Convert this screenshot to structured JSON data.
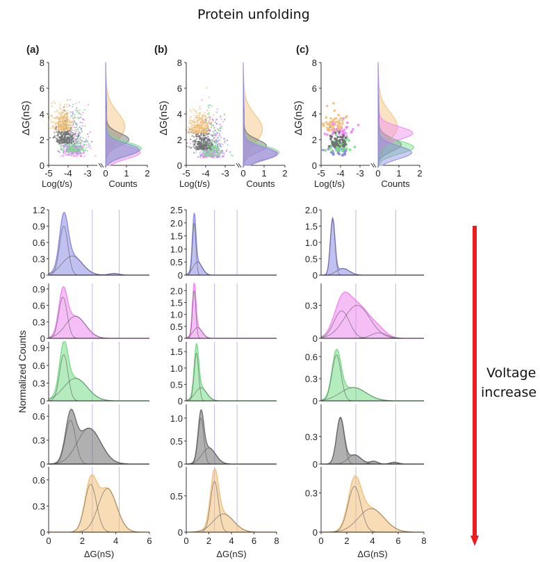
{
  "title": "Protein unfolding",
  "voltage_label": [
    "Voltage",
    "increase"
  ],
  "colors": {
    "blue": "#8c8ce6",
    "magenta": "#ee88ee",
    "green": "#77dd88",
    "black": "#707070",
    "orange": "#f2c07a",
    "grid": "#b8b8f0",
    "arrow": "#ee1c1c"
  },
  "chart_data": [
    {
      "type": "scatter",
      "panel": "(a)",
      "xlabel": "Log(t/s)",
      "ylabel": "ΔG(nS)",
      "xlim": [
        -5,
        -2.5
      ],
      "ylim": [
        0,
        8
      ],
      "xticks": [
        "-5",
        "-4",
        "-3"
      ],
      "yticks": [
        "0",
        "2",
        "4",
        "6",
        "8"
      ],
      "series": [
        {
          "color": "blue",
          "center_x": -4.0,
          "center_y": 1.2,
          "spread": "wide"
        },
        {
          "color": "magenta",
          "center_x": -4.0,
          "center_y": 1.0,
          "spread": "wide"
        },
        {
          "color": "green",
          "center_x": -4.0,
          "center_y": 1.3,
          "spread": "wide"
        },
        {
          "color": "black",
          "center_x": -4.2,
          "center_y": 2.0,
          "spread": "dense"
        },
        {
          "color": "orange",
          "center_x": -4.3,
          "center_y": 3.0,
          "spread": "dense"
        }
      ],
      "side_histogram": {
        "xlabel": "Counts",
        "xticks": [
          "0",
          "1",
          "2"
        ],
        "xlim": [
          0,
          2
        ]
      }
    },
    {
      "type": "scatter",
      "panel": "(b)",
      "xlabel": "Log(t/s)",
      "ylabel": "ΔG(nS)",
      "xlim": [
        -5,
        -2.5
      ],
      "ylim": [
        0,
        8
      ],
      "xticks": [
        "-5",
        "-4",
        "-3"
      ],
      "yticks": [
        "0",
        "2",
        "4",
        "6",
        "8"
      ],
      "series": [
        {
          "color": "blue",
          "center_x": -4.0,
          "center_y": 0.9,
          "spread": "wide"
        },
        {
          "color": "magenta",
          "center_x": -4.0,
          "center_y": 0.9,
          "spread": "wide"
        },
        {
          "color": "green",
          "center_x": -4.0,
          "center_y": 1.0,
          "spread": "wide"
        },
        {
          "color": "black",
          "center_x": -4.2,
          "center_y": 1.5,
          "spread": "dense"
        },
        {
          "color": "orange",
          "center_x": -4.3,
          "center_y": 2.8,
          "spread": "dense"
        }
      ],
      "side_histogram": {
        "xlabel": "Counts",
        "xticks": [
          "0",
          "1",
          "2"
        ],
        "xlim": [
          0,
          2
        ]
      }
    },
    {
      "type": "scatter",
      "panel": "(c)",
      "xlabel": "Log(t/s)",
      "ylabel": "ΔG(nS)",
      "xlim": [
        -5,
        -2.5
      ],
      "ylim": [
        0,
        8
      ],
      "xticks": [
        "-5",
        "-4",
        "-3"
      ],
      "yticks": [
        "0",
        "2",
        "4",
        "6",
        "8"
      ],
      "series": [
        {
          "color": "blue",
          "center_x": -4.1,
          "center_y": 1.0,
          "spread": "sparse"
        },
        {
          "color": "magenta",
          "center_x": -4.1,
          "center_y": 2.5,
          "spread": "sparse"
        },
        {
          "color": "green",
          "center_x": -4.1,
          "center_y": 1.4,
          "spread": "sparse"
        },
        {
          "color": "black",
          "center_x": -4.2,
          "center_y": 1.6,
          "spread": "sparse"
        },
        {
          "color": "orange",
          "center_x": -4.3,
          "center_y": 3.0,
          "spread": "sparse"
        }
      ],
      "side_histogram": {
        "xlabel": "Counts",
        "xticks": [
          "0",
          "1",
          "2"
        ],
        "xlim": [
          0,
          2
        ]
      }
    },
    {
      "type": "area",
      "panel": "(a) histograms",
      "ylabel": "Normalized Counts",
      "xlabel": "ΔG(nS)",
      "xlim": [
        0,
        6
      ],
      "xticks": [
        "0",
        "2",
        "4",
        "6"
      ],
      "vlines": [
        2.6,
        4.2
      ],
      "rows": [
        {
          "color": "blue",
          "ylim": [
            0,
            1.2
          ],
          "yticks": [
            "0",
            "0.3",
            "0.6",
            "0.9",
            "1.2"
          ],
          "peaks": [
            {
              "mu": 0.9,
              "sigma": 0.25,
              "amp": 0.9
            },
            {
              "mu": 1.4,
              "sigma": 0.6,
              "amp": 0.35
            },
            {
              "mu": 3.9,
              "sigma": 0.3,
              "amp": 0.03
            }
          ]
        },
        {
          "color": "magenta",
          "ylim": [
            0,
            1.0
          ],
          "yticks": [
            "0",
            "0.3",
            "0.6",
            "0.9"
          ],
          "peaks": [
            {
              "mu": 0.85,
              "sigma": 0.25,
              "amp": 0.75
            },
            {
              "mu": 1.6,
              "sigma": 0.6,
              "amp": 0.4
            }
          ]
        },
        {
          "color": "green",
          "ylim": [
            0,
            1.0
          ],
          "yticks": [
            "0",
            "0.3",
            "0.6",
            "0.9"
          ],
          "peaks": [
            {
              "mu": 0.9,
              "sigma": 0.25,
              "amp": 0.78
            },
            {
              "mu": 1.6,
              "sigma": 0.7,
              "amp": 0.38
            }
          ]
        },
        {
          "color": "black",
          "ylim": [
            0,
            0.75
          ],
          "yticks": [
            "0",
            "0.3",
            "0.6"
          ],
          "peaks": [
            {
              "mu": 1.3,
              "sigma": 0.3,
              "amp": 0.55
            },
            {
              "mu": 2.4,
              "sigma": 0.7,
              "amp": 0.45
            }
          ]
        },
        {
          "color": "orange",
          "ylim": [
            0,
            0.75
          ],
          "yticks": [
            "0",
            "0.3",
            "0.6"
          ],
          "peaks": [
            {
              "mu": 2.5,
              "sigma": 0.35,
              "amp": 0.55
            },
            {
              "mu": 3.5,
              "sigma": 0.55,
              "amp": 0.5
            }
          ]
        }
      ]
    },
    {
      "type": "area",
      "panel": "(b) histograms",
      "xlabel": "ΔG(nS)",
      "xlim": [
        0,
        8
      ],
      "xticks": [
        "0",
        "2",
        "4",
        "6",
        "8"
      ],
      "vlines": [
        2.5,
        4.5
      ],
      "rows": [
        {
          "color": "blue",
          "ylim": [
            0,
            2.5
          ],
          "yticks": [
            "0",
            "0.5",
            "1.0",
            "1.5",
            "2.0",
            "2.5"
          ],
          "peaks": [
            {
              "mu": 0.7,
              "sigma": 0.15,
              "amp": 2.0
            },
            {
              "mu": 1.0,
              "sigma": 0.4,
              "amp": 0.5
            }
          ]
        },
        {
          "color": "magenta",
          "ylim": [
            0,
            2.3
          ],
          "yticks": [
            "0",
            "0.5",
            "1.0",
            "1.5",
            "2.0"
          ],
          "peaks": [
            {
              "mu": 0.7,
              "sigma": 0.15,
              "amp": 2.0
            },
            {
              "mu": 1.0,
              "sigma": 0.4,
              "amp": 0.45
            }
          ]
        },
        {
          "color": "green",
          "ylim": [
            0,
            1.8
          ],
          "yticks": [
            "0",
            "0.5",
            "1.0",
            "1.5"
          ],
          "peaks": [
            {
              "mu": 0.9,
              "sigma": 0.2,
              "amp": 1.45
            },
            {
              "mu": 1.3,
              "sigma": 0.5,
              "amp": 0.4
            }
          ]
        },
        {
          "color": "black",
          "ylim": [
            0,
            1.3
          ],
          "yticks": [
            "0",
            "0.5",
            "1.0"
          ],
          "peaks": [
            {
              "mu": 1.3,
              "sigma": 0.25,
              "amp": 1.0
            },
            {
              "mu": 2.0,
              "sigma": 0.6,
              "amp": 0.35
            }
          ]
        },
        {
          "color": "orange",
          "ylim": [
            0,
            0.9
          ],
          "yticks": [
            "0",
            "0.5"
          ],
          "peaks": [
            {
              "mu": 2.5,
              "sigma": 0.35,
              "amp": 0.7
            },
            {
              "mu": 3.3,
              "sigma": 0.9,
              "amp": 0.25
            }
          ]
        }
      ]
    },
    {
      "type": "area",
      "panel": "(c) histograms",
      "xlabel": "ΔG(nS)",
      "xlim": [
        0,
        8
      ],
      "xticks": [
        "0",
        "2",
        "4",
        "6",
        "8"
      ],
      "vlines": [
        2.7,
        5.8
      ],
      "rows": [
        {
          "color": "blue",
          "ylim": [
            0,
            2.0
          ],
          "yticks": [
            "0",
            "0.5",
            "1.0",
            "1.5",
            "2.0"
          ],
          "peaks": [
            {
              "mu": 0.9,
              "sigma": 0.18,
              "amp": 1.7
            },
            {
              "mu": 1.7,
              "sigma": 0.5,
              "amp": 0.2
            }
          ]
        },
        {
          "color": "magenta",
          "ylim": [
            0,
            0.5
          ],
          "yticks": [
            "0",
            "0.3"
          ],
          "peaks": [
            {
              "mu": 1.6,
              "sigma": 0.6,
              "amp": 0.25
            },
            {
              "mu": 2.8,
              "sigma": 1.0,
              "amp": 0.3
            },
            {
              "mu": 4.5,
              "sigma": 0.6,
              "amp": 0.05
            }
          ]
        },
        {
          "color": "green",
          "ylim": [
            0,
            0.8
          ],
          "yticks": [
            "0",
            "0.3",
            "0.6"
          ],
          "peaks": [
            {
              "mu": 1.2,
              "sigma": 0.35,
              "amp": 0.62
            },
            {
              "mu": 2.5,
              "sigma": 1.0,
              "amp": 0.18
            }
          ]
        },
        {
          "color": "black",
          "ylim": [
            0,
            0.65
          ],
          "yticks": [
            "0",
            "0.3"
          ],
          "peaks": [
            {
              "mu": 1.5,
              "sigma": 0.3,
              "amp": 0.5
            },
            {
              "mu": 2.6,
              "sigma": 0.5,
              "amp": 0.1
            },
            {
              "mu": 4.1,
              "sigma": 0.3,
              "amp": 0.03
            },
            {
              "mu": 5.7,
              "sigma": 0.3,
              "amp": 0.02
            }
          ]
        },
        {
          "color": "orange",
          "ylim": [
            0,
            0.5
          ],
          "yticks": [
            "0",
            "0.3"
          ],
          "peaks": [
            {
              "mu": 2.6,
              "sigma": 0.5,
              "amp": 0.35
            },
            {
              "mu": 3.9,
              "sigma": 1.0,
              "amp": 0.18
            }
          ]
        }
      ]
    }
  ]
}
